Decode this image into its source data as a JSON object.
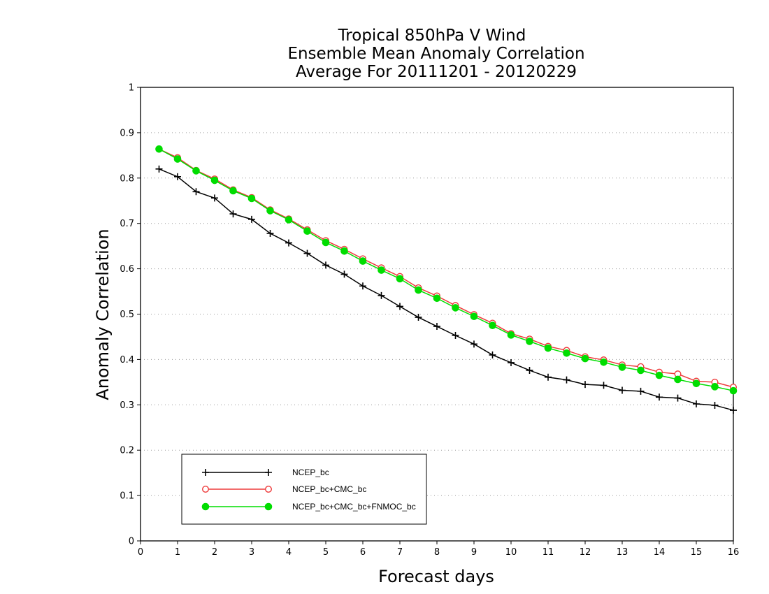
{
  "chart_data": {
    "type": "line",
    "title": [
      "Tropical 850hPa V Wind",
      "Ensemble Mean Anomaly Correlation",
      "Average For 20111201 - 20120229"
    ],
    "xlabel": "Forecast days",
    "ylabel": "Anomaly Correlation",
    "xlim": [
      0,
      16
    ],
    "ylim": [
      0,
      1
    ],
    "xticks": [
      "0",
      "1",
      "2",
      "3",
      "4",
      "5",
      "6",
      "7",
      "8",
      "9",
      "10",
      "11",
      "12",
      "13",
      "14",
      "15",
      "16"
    ],
    "yticks": [
      "0",
      "0.1",
      "0.2",
      "0.3",
      "0.4",
      "0.5",
      "0.6",
      "0.7",
      "0.8",
      "0.9",
      "1"
    ],
    "grid": "dotted horizontal",
    "legend_position": "bottom-left",
    "x": [
      0.5,
      1,
      1.5,
      2,
      2.5,
      3,
      3.5,
      4,
      4.5,
      5,
      5.5,
      6,
      6.5,
      7,
      7.5,
      8,
      8.5,
      9,
      9.5,
      10,
      10.5,
      11,
      11.5,
      12,
      12.5,
      13,
      13.5,
      14,
      14.5,
      15,
      15.5,
      16
    ],
    "series": [
      {
        "name": "NCEP_bc",
        "color": "#000000",
        "marker": "plus",
        "values": [
          0.82,
          0.803,
          0.77,
          0.756,
          0.721,
          0.709,
          0.678,
          0.657,
          0.634,
          0.608,
          0.588,
          0.562,
          0.541,
          0.517,
          0.493,
          0.473,
          0.453,
          0.434,
          0.41,
          0.393,
          0.376,
          0.361,
          0.355,
          0.345,
          0.343,
          0.332,
          0.33,
          0.317,
          0.315,
          0.302,
          0.299,
          0.288
        ]
      },
      {
        "name": "NCEP_bc+CMC_bc",
        "color": "#ee3b3b",
        "marker": "open-circle",
        "values": [
          0.864,
          0.845,
          0.817,
          0.798,
          0.774,
          0.757,
          0.73,
          0.71,
          0.686,
          0.662,
          0.643,
          0.622,
          0.602,
          0.583,
          0.558,
          0.54,
          0.519,
          0.499,
          0.48,
          0.457,
          0.445,
          0.429,
          0.42,
          0.406,
          0.399,
          0.388,
          0.384,
          0.372,
          0.368,
          0.352,
          0.35,
          0.339
        ]
      },
      {
        "name": "NCEP_bc+CMC_bc+FNMOC_bc",
        "color": "#00dd00",
        "marker": "filled-circle",
        "values": [
          0.864,
          0.842,
          0.816,
          0.795,
          0.772,
          0.755,
          0.728,
          0.708,
          0.683,
          0.658,
          0.639,
          0.617,
          0.597,
          0.578,
          0.553,
          0.535,
          0.514,
          0.495,
          0.475,
          0.454,
          0.44,
          0.425,
          0.414,
          0.402,
          0.394,
          0.383,
          0.376,
          0.365,
          0.356,
          0.347,
          0.34,
          0.331
        ]
      }
    ]
  }
}
